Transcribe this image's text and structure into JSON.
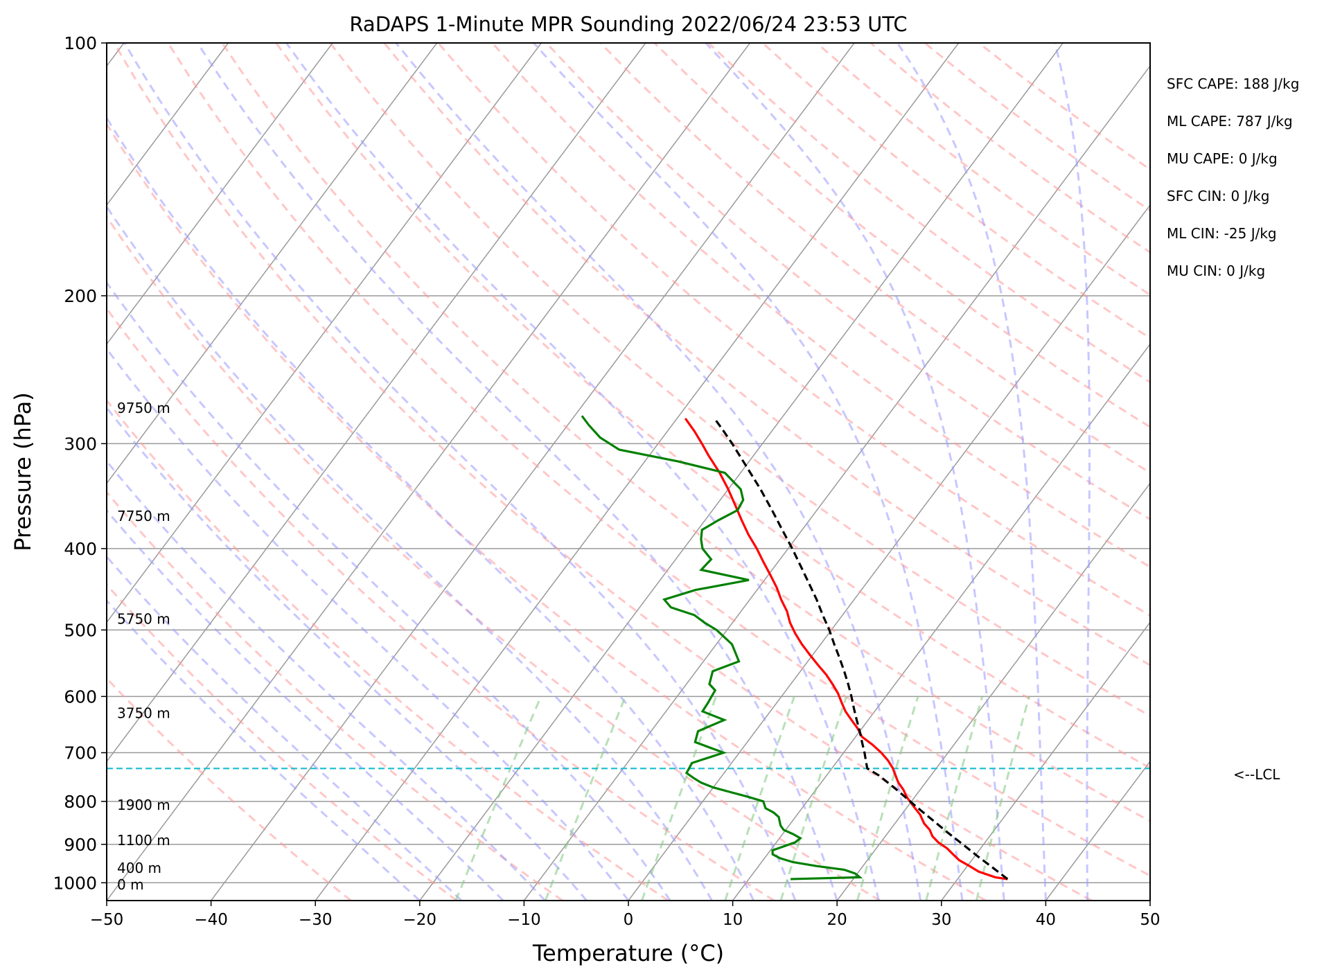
{
  "chart_data": {
    "type": "line",
    "title": "RaDAPS 1-Minute MPR Sounding 2022/06/24 23:53 UTC",
    "xlabel": "Temperature (°C)",
    "ylabel": "Pressure (hPa)",
    "xlim": [
      -50,
      50
    ],
    "ylim": [
      1050,
      100
    ],
    "y_scale": "log",
    "skew": "skew-T log-P",
    "grid": true,
    "x_ticks": [
      "−50",
      "−40",
      "−30",
      "−20",
      "−10",
      "0",
      "10",
      "20",
      "30",
      "40",
      "50"
    ],
    "y_ticks": [
      "100",
      "200",
      "300",
      "400",
      "500",
      "600",
      "700",
      "800",
      "900",
      "1000"
    ],
    "colors": {
      "temperature": "#ff0000",
      "dewpoint": "#008000",
      "parcel": "#000000",
      "lcl": "#17becf",
      "isotherm": "#9a9a9a",
      "dry_adiabat": "#ff9999",
      "moist_adiabat": "#9999ff",
      "mixing_ratio": "#88cc88"
    },
    "series": [
      {
        "key": "temperature",
        "pressure": [
          990,
          985,
          970,
          955,
          940,
          925,
          910,
          895,
          880,
          865,
          850,
          830,
          810,
          790,
          775,
          760,
          745,
          730,
          715,
          700,
          685,
          670,
          655,
          640,
          625,
          610,
          595,
          580,
          565,
          550,
          535,
          520,
          505,
          490,
          475,
          460,
          445,
          430,
          415,
          400,
          385,
          370,
          355,
          340,
          325,
          310,
          300,
          290,
          280
        ],
        "values": [
          34.8,
          33.5,
          31.5,
          30.2,
          28.8,
          27.8,
          26.8,
          25.5,
          24.5,
          23.8,
          22.8,
          21.8,
          20.5,
          19.2,
          18.4,
          17.4,
          16.6,
          15.8,
          14.8,
          13.6,
          12.2,
          10.6,
          9.6,
          8.4,
          7.2,
          6.2,
          5.2,
          4.0,
          2.7,
          1.2,
          -0.3,
          -1.8,
          -3.2,
          -4.5,
          -5.6,
          -7.0,
          -8.3,
          -9.8,
          -11.4,
          -13.0,
          -14.8,
          -16.5,
          -18.2,
          -20.0,
          -22.0,
          -24.3,
          -25.8,
          -27.4,
          -29.2
        ]
      },
      {
        "key": "dewpoint",
        "pressure": [
          990,
          985,
          975,
          965,
          955,
          945,
          935,
          925,
          915,
          905,
          895,
          885,
          875,
          865,
          855,
          845,
          835,
          825,
          815,
          800,
          790,
          780,
          770,
          760,
          750,
          740,
          720,
          700,
          680,
          660,
          640,
          625,
          610,
          590,
          580,
          560,
          545,
          520,
          500,
          490,
          480,
          470,
          460,
          448,
          436,
          424,
          412,
          400,
          390,
          380,
          370,
          360,
          350,
          340,
          325,
          315,
          305,
          295,
          285,
          278
        ],
        "values": [
          14.0,
          20.5,
          19.8,
          18.5,
          15.5,
          13.0,
          11.5,
          10.5,
          10.2,
          11.0,
          11.8,
          12.0,
          11.0,
          9.8,
          9.2,
          8.8,
          8.4,
          7.6,
          6.5,
          5.8,
          4.0,
          2.0,
          0.0,
          -1.5,
          -2.6,
          -3.6,
          -3.8,
          -1.5,
          -5.0,
          -5.5,
          -3.8,
          -6.5,
          -6.6,
          -6.8,
          -7.8,
          -8.4,
          -6.6,
          -8.5,
          -11.0,
          -12.7,
          -14.2,
          -17.0,
          -18.2,
          -15.9,
          -11.5,
          -16.8,
          -16.6,
          -18.2,
          -19.0,
          -19.6,
          -18.7,
          -17.6,
          -17.8,
          -18.8,
          -21.5,
          -26.8,
          -33.3,
          -36.0,
          -38.0,
          -39.3
        ]
      },
      {
        "key": "parcel",
        "pressure": [
          990,
          960,
          930,
          900,
          870,
          840,
          810,
          780,
          760,
          745,
          731,
          720,
          700,
          680,
          660,
          640,
          620,
          600,
          580,
          560,
          540,
          520,
          500,
          480,
          460,
          440,
          420,
          400,
          380,
          360,
          340,
          320,
          300,
          290,
          280
        ],
        "values": [
          34.8,
          32.6,
          30.3,
          28.0,
          25.6,
          23.2,
          20.7,
          18.2,
          16.4,
          15.0,
          13.4,
          12.9,
          12.0,
          11.0,
          10.0,
          8.9,
          7.8,
          6.7,
          5.5,
          4.2,
          2.8,
          1.3,
          -0.2,
          -1.9,
          -3.6,
          -5.5,
          -7.5,
          -9.6,
          -11.9,
          -14.3,
          -16.9,
          -19.8,
          -22.9,
          -24.6,
          -26.4
        ]
      }
    ],
    "lcl_pressure": 731,
    "height_labels": [
      "9750 m",
      "7750 m",
      "5750 m",
      "3750 m",
      "1900 m",
      "1100 m",
      "400 m",
      "0 m"
    ],
    "height_pressures": [
      272,
      366,
      485,
      628,
      808,
      890,
      960,
      1005
    ],
    "lcl_label": "<--LCL",
    "indices": [
      "SFC CAPE: 188 J/kg",
      "ML CAPE: 787 J/kg",
      "MU CAPE: 0 J/kg",
      "SFC CIN: 0 J/kg",
      "ML CIN: -25 J/kg",
      "MU CIN: 0 J/kg"
    ]
  }
}
